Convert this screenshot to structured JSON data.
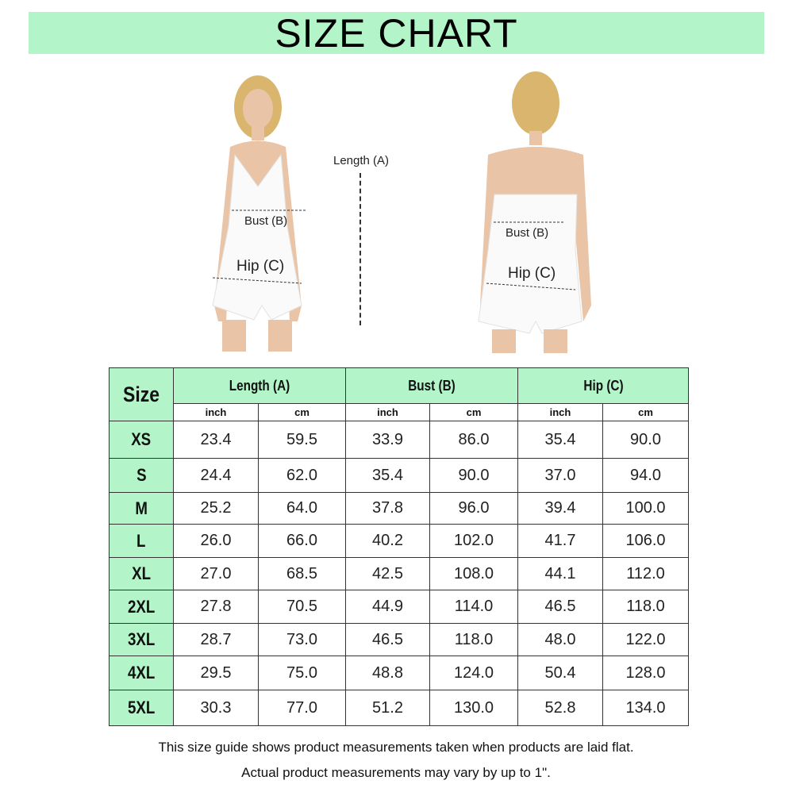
{
  "title": "SIZE CHART",
  "figure_labels": {
    "length": "Length (A)",
    "bust": "Bust (B)",
    "hip": "Hip (C)"
  },
  "table": {
    "size_header": "Size",
    "groups": [
      "Length (A)",
      "Bust (B)",
      "Hip (C)"
    ],
    "units": [
      "inch",
      "cm",
      "inch",
      "cm",
      "inch",
      "cm"
    ],
    "rows": [
      {
        "size": "XS",
        "values": [
          "23.4",
          "59.5",
          "33.9",
          "86.0",
          "35.4",
          "90.0"
        ]
      },
      {
        "size": "S",
        "values": [
          "24.4",
          "62.0",
          "35.4",
          "90.0",
          "37.0",
          "94.0"
        ]
      },
      {
        "size": "M",
        "values": [
          "25.2",
          "64.0",
          "37.8",
          "96.0",
          "39.4",
          "100.0"
        ]
      },
      {
        "size": "L",
        "values": [
          "26.0",
          "66.0",
          "40.2",
          "102.0",
          "41.7",
          "106.0"
        ]
      },
      {
        "size": "XL",
        "values": [
          "27.0",
          "68.5",
          "42.5",
          "108.0",
          "44.1",
          "112.0"
        ]
      },
      {
        "size": "2XL",
        "values": [
          "27.8",
          "70.5",
          "44.9",
          "114.0",
          "46.5",
          "118.0"
        ]
      },
      {
        "size": "3XL",
        "values": [
          "28.7",
          "73.0",
          "46.5",
          "118.0",
          "48.0",
          "122.0"
        ]
      },
      {
        "size": "4XL",
        "values": [
          "29.5",
          "75.0",
          "48.8",
          "124.0",
          "50.4",
          "128.0"
        ]
      },
      {
        "size": "5XL",
        "values": [
          "30.3",
          "77.0",
          "51.2",
          "130.0",
          "52.8",
          "134.0"
        ]
      }
    ]
  },
  "notes": [
    "This size guide shows product measurements taken when products are laid flat.",
    "Actual product measurements may vary by up to 1\"."
  ],
  "colors": {
    "accent_green": "#b3f5c9"
  }
}
